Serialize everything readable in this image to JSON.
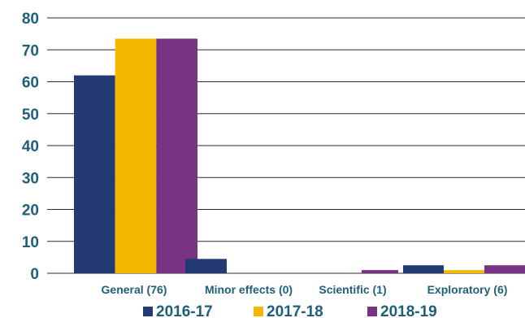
{
  "chart_data": {
    "type": "bar",
    "categories": [
      "General (76)",
      "Minor effects (0)",
      "Scientific (1)",
      "Exploratory (6)"
    ],
    "series": [
      {
        "name": "2016-17",
        "color": "#233a73",
        "values": [
          62,
          4.5,
          0,
          2.5
        ]
      },
      {
        "name": "2017-18",
        "color": "#f5b800",
        "values": [
          73.5,
          0,
          0,
          1
        ]
      },
      {
        "name": "2018-19",
        "color": "#783482",
        "values": [
          73.5,
          0,
          1,
          2.5
        ]
      }
    ],
    "ylim": [
      0,
      80
    ],
    "yticks": [
      0,
      10,
      20,
      30,
      40,
      50,
      60,
      70,
      80
    ],
    "grid": true,
    "legend_position": "bottom-center"
  }
}
